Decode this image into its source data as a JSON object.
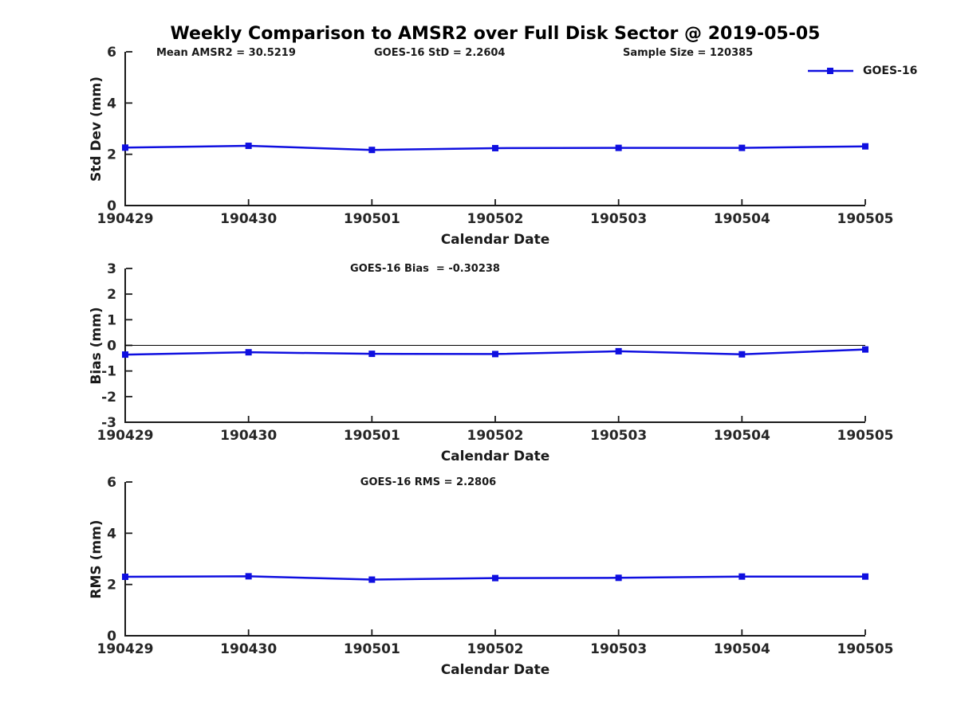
{
  "title": "Weekly Comparison to AMSR2 over Full Disk Sector @ 2019-05-05",
  "legend": {
    "label": "GOES-16"
  },
  "colors": {
    "series": "#0f0fe0",
    "axis": "#1a1a1a",
    "zero_line": "#000000"
  },
  "chart_data": [
    {
      "type": "line",
      "annotations": [
        "Mean AMSR2 = 30.5219",
        "GOES-16 StD = 2.2604",
        "Sample Size = 120385"
      ],
      "xlabel": "Calendar Date",
      "ylabel": "Std Dev (mm)",
      "categories": [
        "190429",
        "190430",
        "190501",
        "190502",
        "190503",
        "190504",
        "190505"
      ],
      "series": [
        {
          "name": "GOES-16",
          "values": [
            2.26,
            2.33,
            2.17,
            2.24,
            2.25,
            2.25,
            2.31
          ]
        }
      ],
      "ylim": [
        0,
        6
      ],
      "y_ticks": [
        0,
        2,
        4,
        6
      ],
      "grid": false,
      "zero_line": false,
      "legend_position": "top-right"
    },
    {
      "type": "line",
      "annotations": [
        "GOES-16 Bias  = -0.30238"
      ],
      "xlabel": "Calendar Date",
      "ylabel": "Bias (mm)",
      "categories": [
        "190429",
        "190430",
        "190501",
        "190502",
        "190503",
        "190504",
        "190505"
      ],
      "series": [
        {
          "name": "GOES-16",
          "values": [
            -0.36,
            -0.27,
            -0.33,
            -0.34,
            -0.23,
            -0.35,
            -0.16
          ]
        }
      ],
      "ylim": [
        -3,
        3
      ],
      "y_ticks": [
        -3,
        -2,
        -1,
        0,
        1,
        2,
        3
      ],
      "grid": false,
      "zero_line": true,
      "legend_position": "none"
    },
    {
      "type": "line",
      "annotations": [
        "GOES-16 RMS = 2.2806"
      ],
      "xlabel": "Calendar Date",
      "ylabel": "RMS (mm)",
      "categories": [
        "190429",
        "190430",
        "190501",
        "190502",
        "190503",
        "190504",
        "190505"
      ],
      "series": [
        {
          "name": "GOES-16",
          "values": [
            2.3,
            2.32,
            2.19,
            2.25,
            2.26,
            2.31,
            2.31
          ]
        }
      ],
      "ylim": [
        0,
        6
      ],
      "y_ticks": [
        0,
        2,
        4,
        6
      ],
      "grid": false,
      "zero_line": false,
      "legend_position": "none"
    }
  ]
}
